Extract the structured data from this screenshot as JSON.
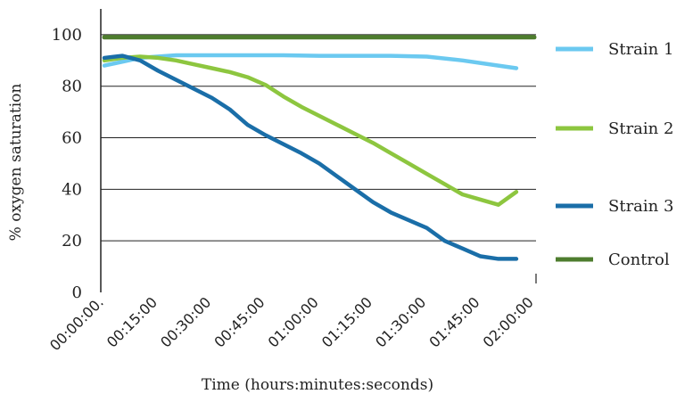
{
  "chart_data": {
    "type": "line",
    "title": "",
    "xlabel": "Time (hours:minutes:seconds)",
    "ylabel": "% oxygen saturation",
    "ylim": [
      0,
      110
    ],
    "yticks": [
      0,
      20,
      40,
      60,
      80,
      100
    ],
    "grid": "horizontal",
    "legend_position": "right",
    "x_ticks": [
      "00:00:00.",
      "00:15:00",
      "00:30:00",
      "00:45:00",
      "01:00:00",
      "01:15:00",
      "01:30:00",
      "01:45:00",
      "02:00:00"
    ],
    "x_minutes_range": [
      0,
      120
    ],
    "series": [
      {
        "name": "Strain 1",
        "color": "#6bc9f0",
        "x_minutes": [
          0,
          10,
          20,
          30,
          40,
          50,
          60,
          70,
          80,
          90,
          100,
          110,
          115
        ],
        "values": [
          88,
          91,
          92,
          92,
          92,
          92,
          91.8,
          91.8,
          91.8,
          91.5,
          90,
          88,
          87
        ]
      },
      {
        "name": "Strain 2",
        "color": "#8dc63f",
        "x_minutes": [
          0,
          5,
          10,
          15,
          20,
          25,
          30,
          35,
          40,
          45,
          50,
          55,
          60,
          65,
          70,
          75,
          80,
          85,
          90,
          95,
          100,
          105,
          110,
          115
        ],
        "values": [
          90,
          91,
          91.5,
          91,
          90,
          88.5,
          87,
          85.5,
          83.5,
          80.5,
          76,
          72,
          68.5,
          65,
          61.5,
          58,
          54,
          50,
          46,
          42,
          38,
          36,
          34,
          39
        ]
      },
      {
        "name": "Strain 3",
        "color": "#1a6ea8",
        "x_minutes": [
          0,
          5,
          10,
          15,
          20,
          25,
          30,
          35,
          40,
          45,
          50,
          55,
          60,
          65,
          70,
          75,
          80,
          85,
          90,
          95,
          100,
          105,
          110,
          115
        ],
        "values": [
          91,
          91.8,
          90,
          86,
          82.5,
          79,
          75.5,
          71,
          65,
          61,
          57.5,
          54,
          50,
          45,
          40,
          35,
          31,
          28,
          25,
          20,
          17,
          14,
          13,
          13
        ]
      },
      {
        "name": "Control",
        "color": "#4e7d2e",
        "x_minutes": [
          0,
          120
        ],
        "values": [
          99,
          99
        ]
      }
    ]
  }
}
